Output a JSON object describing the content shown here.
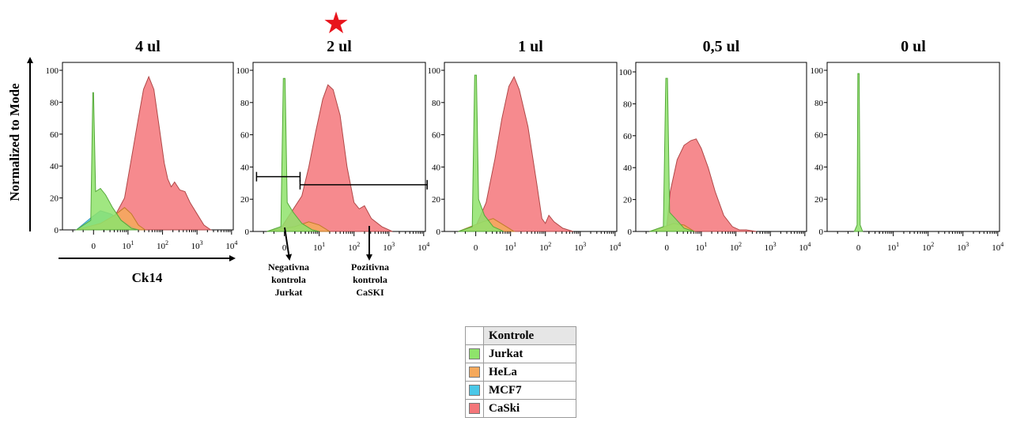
{
  "marker": {
    "symbol": "★",
    "color": "#e8141c"
  },
  "y_axis_label": "Normalized to Mode",
  "x_axis_label": "Ck14",
  "annotations": {
    "negative": [
      "Negativna",
      "kontrola",
      "Jurkat"
    ],
    "positive": [
      "Pozitivna",
      "kontrola",
      "CaSKI"
    ]
  },
  "legend": {
    "title": "Kontrole",
    "items": [
      {
        "label": "Jurkat",
        "color": "#8fe36b"
      },
      {
        "label": "HeLa",
        "color": "#f5a95c"
      },
      {
        "label": "MCF7",
        "color": "#4ac8e8"
      },
      {
        "label": "CaSki",
        "color": "#f4767a"
      }
    ]
  },
  "chart_data": [
    {
      "type": "area",
      "title": "4 ul",
      "ylim": [
        0,
        100
      ],
      "yticks": [
        "0",
        "20",
        "40",
        "60",
        "80",
        "100"
      ],
      "xticks": [
        [
          "0",
          0
        ],
        [
          "10",
          1,
          "1"
        ],
        [
          "10",
          2,
          "2"
        ],
        [
          "10",
          3,
          "3"
        ],
        [
          "10",
          4,
          "4"
        ]
      ],
      "series": [
        {
          "name": "CaSki",
          "color": "#f4767a",
          "edge": "#b04848",
          "points": [
            [
              -0.5,
              0
            ],
            [
              0.2,
              2
            ],
            [
              0.6,
              8
            ],
            [
              0.9,
              20
            ],
            [
              1.1,
              45
            ],
            [
              1.3,
              70
            ],
            [
              1.45,
              88
            ],
            [
              1.6,
              96
            ],
            [
              1.75,
              88
            ],
            [
              1.9,
              65
            ],
            [
              2.05,
              42
            ],
            [
              2.15,
              32
            ],
            [
              2.25,
              27
            ],
            [
              2.35,
              30
            ],
            [
              2.5,
              25
            ],
            [
              2.65,
              24
            ],
            [
              2.8,
              17
            ],
            [
              3.0,
              10
            ],
            [
              3.2,
              3
            ],
            [
              3.4,
              0
            ]
          ]
        },
        {
          "name": "MCF7",
          "color": "#4ac8e8",
          "edge": "#3a9ab8",
          "points": [
            [
              -0.5,
              0
            ],
            [
              -0.05,
              8
            ],
            [
              0.2,
              12
            ],
            [
              0.5,
              10
            ],
            [
              0.8,
              6
            ],
            [
              1.1,
              2
            ],
            [
              1.3,
              0
            ]
          ]
        },
        {
          "name": "HeLa",
          "color": "#f5a95c",
          "edge": "#c07a2a",
          "points": [
            [
              -0.5,
              0
            ],
            [
              0.2,
              4
            ],
            [
              0.6,
              9
            ],
            [
              0.9,
              14
            ],
            [
              1.1,
              10
            ],
            [
              1.3,
              3
            ],
            [
              1.5,
              0
            ]
          ]
        },
        {
          "name": "Jurkat",
          "color": "#8fe36b",
          "edge": "#55a83a",
          "points": [
            [
              -0.5,
              0
            ],
            [
              -0.08,
              6
            ],
            [
              -0.02,
              86
            ],
            [
              0.0,
              86
            ],
            [
              0.06,
              24
            ],
            [
              0.2,
              26
            ],
            [
              0.35,
              22
            ],
            [
              0.55,
              14
            ],
            [
              0.8,
              6
            ],
            [
              1.1,
              1
            ],
            [
              1.3,
              0
            ]
          ]
        }
      ]
    },
    {
      "type": "area",
      "title": "2 ul",
      "ylim": [
        0,
        100
      ],
      "yticks": [
        "0",
        "20",
        "40",
        "60",
        "80",
        "100"
      ],
      "xticks": [
        [
          "0",
          0
        ],
        [
          "10",
          1,
          "1"
        ],
        [
          "10",
          2,
          "2"
        ],
        [
          "10",
          3,
          "3"
        ],
        [
          "10",
          4,
          "4"
        ]
      ],
      "gates": [
        {
          "from": -0.8,
          "to": 0.45,
          "y": 34
        },
        {
          "from": 0.45,
          "to": 4.1,
          "y": 29
        }
      ],
      "series": [
        {
          "name": "CaSki",
          "color": "#f4767a",
          "edge": "#b04848",
          "points": [
            [
              -0.5,
              0
            ],
            [
              -0.1,
              2
            ],
            [
              0.2,
              12
            ],
            [
              0.5,
              22
            ],
            [
              0.7,
              40
            ],
            [
              0.9,
              62
            ],
            [
              1.1,
              82
            ],
            [
              1.25,
              91
            ],
            [
              1.4,
              88
            ],
            [
              1.6,
              72
            ],
            [
              1.8,
              40
            ],
            [
              2.0,
              18
            ],
            [
              2.15,
              14
            ],
            [
              2.3,
              16
            ],
            [
              2.5,
              8
            ],
            [
              2.8,
              3
            ],
            [
              3.1,
              0
            ]
          ]
        },
        {
          "name": "HeLa",
          "color": "#f5a95c",
          "edge": "#c07a2a",
          "points": [
            [
              -0.5,
              0
            ],
            [
              0.3,
              3
            ],
            [
              0.7,
              6
            ],
            [
              1.0,
              4
            ],
            [
              1.3,
              0
            ]
          ]
        },
        {
          "name": "Jurkat",
          "color": "#8fe36b",
          "edge": "#55a83a",
          "points": [
            [
              -0.5,
              0
            ],
            [
              -0.1,
              3
            ],
            [
              -0.03,
              95
            ],
            [
              0.02,
              95
            ],
            [
              0.08,
              18
            ],
            [
              0.25,
              12
            ],
            [
              0.5,
              5
            ],
            [
              0.8,
              1
            ],
            [
              1.0,
              0
            ]
          ]
        }
      ]
    },
    {
      "type": "area",
      "title": "1 ul",
      "ylim": [
        0,
        100
      ],
      "yticks": [
        "0",
        "20",
        "40",
        "60",
        "80",
        "100"
      ],
      "xticks": [
        [
          "0",
          0
        ],
        [
          "10",
          1,
          "1"
        ],
        [
          "10",
          2,
          "2"
        ],
        [
          "10",
          3,
          "3"
        ],
        [
          "10",
          4,
          "4"
        ]
      ],
      "series": [
        {
          "name": "CaSki",
          "color": "#f4767a",
          "edge": "#b04848",
          "points": [
            [
              -0.5,
              0
            ],
            [
              0.0,
              3
            ],
            [
              0.3,
              18
            ],
            [
              0.55,
              45
            ],
            [
              0.75,
              70
            ],
            [
              0.95,
              90
            ],
            [
              1.1,
              96
            ],
            [
              1.25,
              88
            ],
            [
              1.5,
              65
            ],
            [
              1.75,
              30
            ],
            [
              1.9,
              8
            ],
            [
              2.0,
              5
            ],
            [
              2.1,
              10
            ],
            [
              2.25,
              6
            ],
            [
              2.5,
              2
            ],
            [
              2.8,
              0
            ]
          ]
        },
        {
          "name": "HeLa",
          "color": "#f5a95c",
          "edge": "#c07a2a",
          "points": [
            [
              -0.5,
              0
            ],
            [
              0.2,
              6
            ],
            [
              0.5,
              8
            ],
            [
              0.8,
              4
            ],
            [
              1.1,
              0
            ]
          ]
        },
        {
          "name": "Jurkat",
          "color": "#8fe36b",
          "edge": "#55a83a",
          "points": [
            [
              -0.5,
              0
            ],
            [
              -0.1,
              3
            ],
            [
              -0.03,
              97
            ],
            [
              0.02,
              97
            ],
            [
              0.08,
              20
            ],
            [
              0.25,
              10
            ],
            [
              0.5,
              3
            ],
            [
              0.8,
              0
            ]
          ]
        }
      ]
    },
    {
      "type": "area",
      "title": "0,5 ul",
      "ylim": [
        0,
        100
      ],
      "yticks": [
        "0",
        "20",
        "40",
        "60",
        "80",
        "100"
      ],
      "xticks": [
        [
          "0",
          0
        ],
        [
          "10",
          1,
          "1"
        ],
        [
          "10",
          2,
          "2"
        ],
        [
          "10",
          3,
          "3"
        ],
        [
          "10",
          4,
          "4"
        ]
      ],
      "series": [
        {
          "name": "CaSki",
          "color": "#f4767a",
          "edge": "#b04848",
          "points": [
            [
              -0.5,
              0
            ],
            [
              0.0,
              3
            ],
            [
              0.1,
              25
            ],
            [
              0.3,
              45
            ],
            [
              0.5,
              54
            ],
            [
              0.7,
              57
            ],
            [
              0.85,
              58
            ],
            [
              1.0,
              52
            ],
            [
              1.2,
              40
            ],
            [
              1.4,
              25
            ],
            [
              1.65,
              10
            ],
            [
              1.9,
              3
            ],
            [
              2.1,
              1
            ],
            [
              2.3,
              1
            ],
            [
              2.6,
              0
            ]
          ]
        },
        {
          "name": "HeLa",
          "color": "#f5a95c",
          "edge": "#c07a2a",
          "points": [
            [
              -0.5,
              0
            ],
            [
              0.2,
              5
            ],
            [
              0.5,
              4
            ],
            [
              0.8,
              0
            ]
          ]
        },
        {
          "name": "Jurkat",
          "color": "#8fe36b",
          "edge": "#55a83a",
          "points": [
            [
              -0.5,
              0
            ],
            [
              -0.1,
              3
            ],
            [
              -0.03,
              96
            ],
            [
              0.02,
              96
            ],
            [
              0.08,
              12
            ],
            [
              0.25,
              8
            ],
            [
              0.5,
              2
            ],
            [
              0.8,
              0
            ]
          ]
        }
      ]
    },
    {
      "type": "area",
      "title": "0 ul",
      "ylim": [
        0,
        100
      ],
      "yticks": [
        "0",
        "20",
        "40",
        "60",
        "80",
        "100"
      ],
      "xticks": [
        [
          "0",
          0
        ],
        [
          "10",
          1,
          "1"
        ],
        [
          "10",
          2,
          "2"
        ],
        [
          "10",
          3,
          "3"
        ],
        [
          "10",
          4,
          "4"
        ]
      ],
      "series": [
        {
          "name": "Jurkat",
          "color": "#8fe36b",
          "edge": "#55a83a",
          "points": [
            [
              -0.12,
              0
            ],
            [
              -0.04,
              4
            ],
            [
              -0.02,
              98
            ],
            [
              0.02,
              98
            ],
            [
              0.05,
              4
            ],
            [
              0.12,
              0
            ]
          ]
        }
      ]
    }
  ]
}
